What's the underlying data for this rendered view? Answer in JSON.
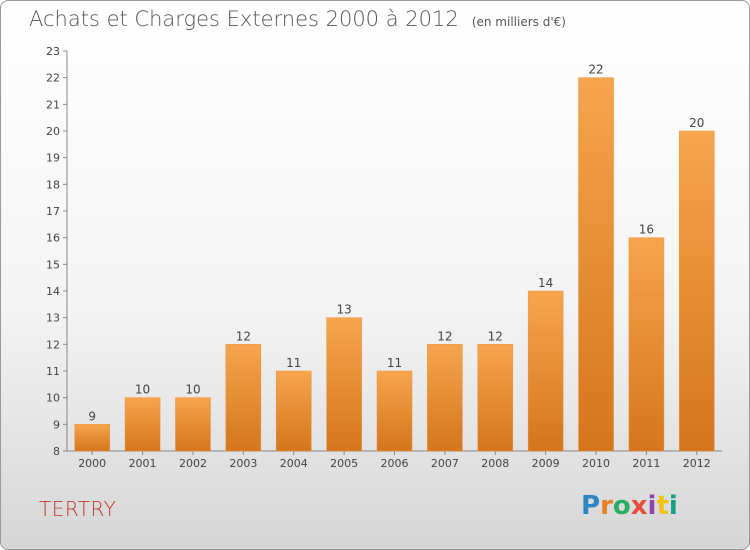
{
  "header": {
    "title": "Achats et Charges Externes 2000 à 2012",
    "subtitle": "(en milliers d'€)"
  },
  "footer": {
    "commune": "TERTRY",
    "logo": [
      "P",
      "r",
      "o",
      "x",
      "i",
      "t",
      "i"
    ],
    "logo_colors": [
      "#2e86c1",
      "#e67e22",
      "#27ae60",
      "#e74c3c",
      "#8e44ad",
      "#f1c40f",
      "#16a085"
    ]
  },
  "chart_data": {
    "type": "bar",
    "categories": [
      "2000",
      "2001",
      "2002",
      "2003",
      "2004",
      "2005",
      "2006",
      "2007",
      "2008",
      "2009",
      "2010",
      "2011",
      "2012"
    ],
    "values": [
      9,
      10,
      10,
      12,
      11,
      13,
      11,
      12,
      12,
      14,
      22,
      16,
      20
    ],
    "ylim": [
      8,
      23
    ],
    "yticks": [
      8,
      9,
      10,
      11,
      12,
      13,
      14,
      15,
      16,
      17,
      18,
      19,
      20,
      21,
      22,
      23
    ],
    "grid": false,
    "bar_color_top": "#f6a54e",
    "bar_color_bottom": "#d4761c"
  }
}
